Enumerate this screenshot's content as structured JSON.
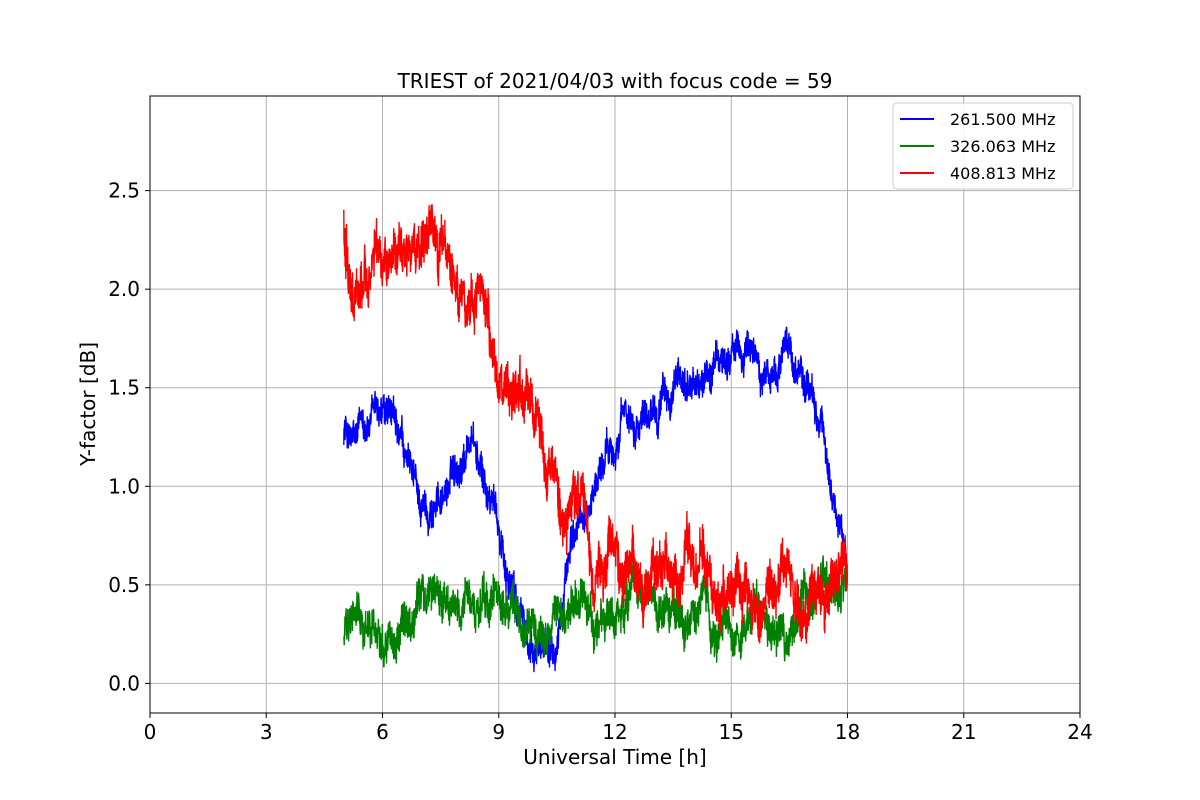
{
  "chart_data": {
    "type": "line",
    "title": "TRIEST of 2021/04/03 with focus code = 59",
    "xlabel": "Universal Time [h]",
    "ylabel": "Y-factor [dB]",
    "xlim": [
      0,
      24
    ],
    "ylim": [
      -0.15,
      2.98
    ],
    "xticks": [
      0,
      3,
      6,
      9,
      12,
      15,
      18,
      21,
      24
    ],
    "xtick_labels": [
      "0",
      "3",
      "6",
      "9",
      "12",
      "15",
      "18",
      "21",
      "24"
    ],
    "yticks": [
      0.0,
      0.5,
      1.0,
      1.5,
      2.0,
      2.5
    ],
    "ytick_labels": [
      "0.0",
      "0.5",
      "1.0",
      "1.5",
      "2.0",
      "2.5"
    ],
    "grid": true,
    "legend_position": "top-right",
    "series": [
      {
        "name": "261.500 MHz",
        "color": "#0000ff",
        "noise": 0.06,
        "x": [
          5.0,
          5.3,
          5.6,
          6.0,
          6.3,
          6.6,
          7.0,
          7.3,
          7.6,
          8.0,
          8.3,
          8.6,
          9.0,
          9.3,
          9.6,
          9.9,
          10.2,
          10.5,
          10.8,
          11.2,
          11.6,
          12.0,
          12.5,
          13.0,
          13.5,
          14.0,
          14.5,
          15.0,
          15.5,
          16.0,
          16.5,
          17.0,
          17.3,
          17.6,
          18.0
        ],
        "y": [
          1.3,
          1.2,
          1.3,
          1.35,
          1.2,
          1.05,
          0.85,
          0.9,
          1.0,
          1.15,
          1.3,
          1.0,
          0.8,
          0.55,
          0.35,
          0.1,
          0.2,
          0.4,
          0.6,
          0.85,
          1.1,
          1.3,
          1.4,
          1.5,
          1.45,
          1.5,
          1.55,
          1.7,
          1.65,
          1.6,
          1.7,
          1.5,
          1.3,
          1.0,
          0.6
        ]
      },
      {
        "name": "326.063 MHz",
        "color": "#008000",
        "noise": 0.07,
        "x": [
          5.0,
          5.5,
          6.0,
          6.5,
          7.0,
          7.5,
          8.0,
          8.5,
          9.0,
          9.5,
          10.0,
          10.5,
          11.0,
          11.5,
          12.0,
          12.5,
          13.0,
          13.5,
          14.0,
          14.5,
          15.0,
          15.5,
          16.0,
          16.5,
          17.0,
          17.5,
          18.0
        ],
        "y": [
          0.25,
          0.3,
          0.3,
          0.35,
          0.45,
          0.45,
          0.42,
          0.3,
          0.4,
          0.35,
          0.3,
          0.3,
          0.28,
          0.25,
          0.3,
          0.35,
          0.3,
          0.3,
          0.3,
          0.28,
          0.28,
          0.3,
          0.3,
          0.32,
          0.35,
          0.5,
          0.5
        ]
      },
      {
        "name": "408.813 MHz",
        "color": "#ff0000",
        "noise": 0.09,
        "x": [
          5.0,
          5.2,
          5.5,
          6.0,
          6.5,
          7.0,
          7.5,
          8.0,
          8.5,
          9.0,
          9.5,
          10.0,
          10.5,
          11.0,
          11.5,
          12.0,
          12.5,
          13.0,
          13.5,
          14.0,
          14.5,
          15.0,
          15.5,
          16.0,
          16.5,
          17.0,
          17.5,
          18.0
        ],
        "y": [
          2.3,
          2.1,
          2.1,
          2.15,
          2.2,
          2.2,
          2.1,
          2.05,
          1.95,
          1.65,
          1.35,
          1.2,
          1.0,
          0.85,
          0.7,
          0.6,
          0.55,
          0.5,
          0.5,
          0.5,
          0.5,
          0.5,
          0.5,
          0.5,
          0.45,
          0.45,
          0.5,
          0.45
        ]
      }
    ]
  }
}
